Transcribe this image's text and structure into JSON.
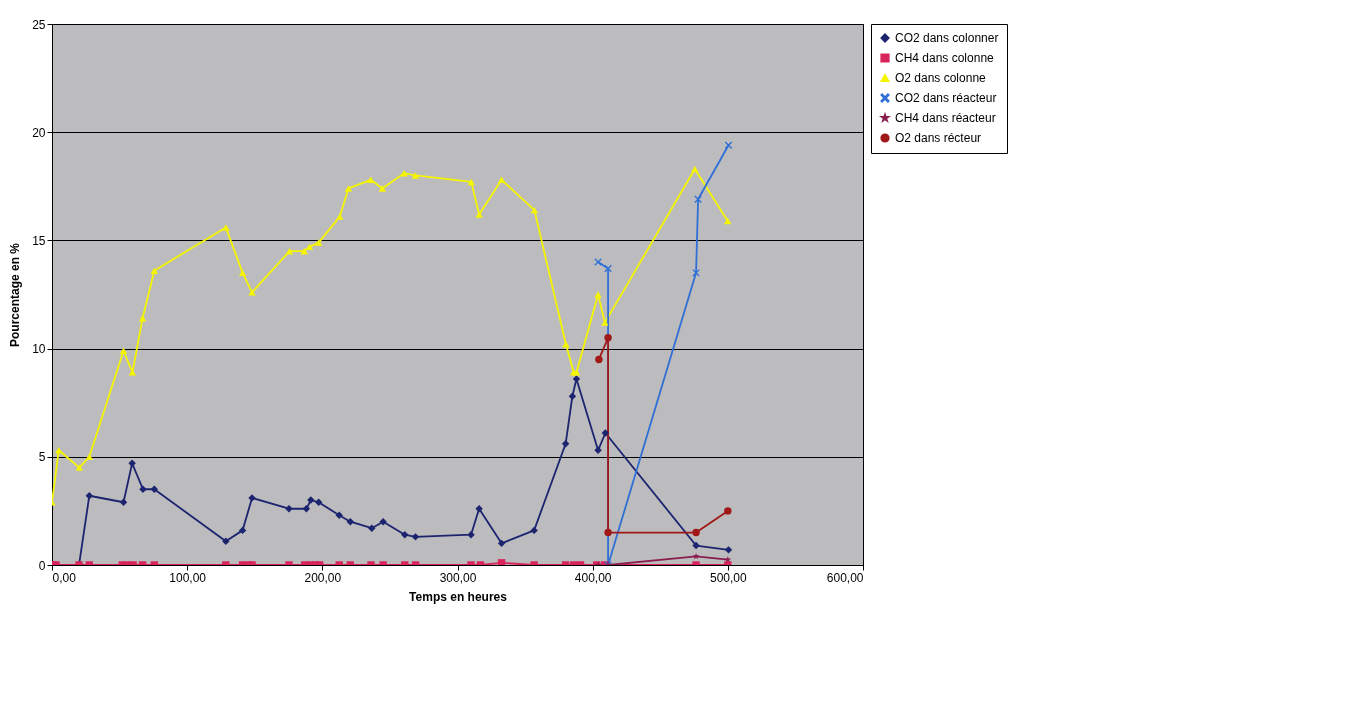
{
  "chart_data": {
    "type": "line",
    "xlabel": "Temps en heures",
    "ylabel": "Pourcentage en  %",
    "xlim": [
      0,
      600
    ],
    "ylim": [
      0,
      25
    ],
    "xticks": [
      {
        "value": 0,
        "label": "0,00"
      },
      {
        "value": 100,
        "label": "100,00"
      },
      {
        "value": 200,
        "label": "200,00"
      },
      {
        "value": 300,
        "label": "300,00"
      },
      {
        "value": 400,
        "label": "400,00"
      },
      {
        "value": 500,
        "label": "500,00"
      },
      {
        "value": 600,
        "label": "600,00"
      }
    ],
    "yticks": [
      0,
      5,
      10,
      15,
      20,
      25
    ],
    "grid": "y",
    "legend": "right",
    "series": [
      {
        "name": "CO2 dans colonner",
        "color": "#1c2470",
        "marker": "diamond",
        "x": [
          0,
          3,
          20,
          27.6,
          52.9,
          59.3,
          67.3,
          75.7,
          128.6,
          141,
          148,
          175.3,
          188.2,
          191.5,
          197.3,
          212.5,
          220.7,
          236.6,
          245,
          261,
          268.9,
          310,
          316,
          332.6,
          356.7,
          380,
          385,
          388,
          404,
          409.4,
          476.5,
          500.5
        ],
        "values": [
          0,
          0,
          0,
          3.2,
          2.9,
          4.7,
          3.5,
          3.5,
          1.1,
          1.6,
          3.1,
          2.6,
          2.6,
          3.0,
          2.9,
          2.3,
          2.0,
          1.7,
          2.0,
          1.4,
          1.3,
          1.4,
          2.6,
          1.0,
          1.6,
          5.6,
          7.8,
          8.6,
          5.3,
          6.1,
          0.9,
          0.7
        ]
      },
      {
        "name": "CH4 dans colonne",
        "color": "#d8245a",
        "marker": "square",
        "x": [
          0,
          3,
          20,
          27.6,
          52,
          56,
          60,
          67,
          75.7,
          128.6,
          141,
          145,
          148,
          175.3,
          187,
          191,
          195,
          198,
          212.5,
          220.7,
          236,
          245,
          261,
          269,
          310,
          317,
          332.6,
          356.7,
          380,
          386,
          391,
          403,
          409,
          476.5,
          500
        ],
        "values": [
          0,
          0,
          0,
          0,
          0,
          0,
          0,
          0,
          0,
          0,
          0,
          0,
          0,
          0,
          0,
          0,
          0,
          0,
          0,
          0,
          0,
          0,
          0,
          0,
          0,
          0,
          0.1,
          0,
          0,
          0,
          0,
          0,
          0,
          0,
          0
        ]
      },
      {
        "name": "O2 dans colonne",
        "color": "#f5f500",
        "marker": "triangle",
        "x": [
          0,
          5,
          20.2,
          27.6,
          52.9,
          59.5,
          67,
          75.7,
          128.6,
          141,
          148,
          175.7,
          186.6,
          190.5,
          197.3,
          212.9,
          219.3,
          235.8,
          244.4,
          260.5,
          268.9,
          310.2,
          316,
          332.6,
          356.9,
          380.2,
          386,
          388,
          404,
          409,
          475.6,
          499.9
        ],
        "values": [
          2.9,
          5.3,
          4.5,
          5.0,
          9.9,
          8.9,
          11.4,
          13.6,
          15.6,
          13.5,
          12.6,
          14.5,
          14.5,
          14.7,
          14.9,
          16.1,
          17.4,
          17.8,
          17.4,
          18.1,
          18.0,
          17.7,
          16.2,
          17.8,
          16.4,
          10.2,
          8.9,
          8.9,
          12.5,
          11.2,
          18.3,
          15.9
        ]
      },
      {
        "name": "CO2 dans réacteur",
        "color": "#2f6fd6",
        "marker": "cross",
        "x": [
          404,
          411.4,
          411.4,
          476.5,
          478,
          500.5
        ],
        "values": [
          14.0,
          13.7,
          0,
          13.5,
          16.9,
          19.4
        ]
      },
      {
        "name": "CH4 dans réacteur",
        "color": "#8a1f4e",
        "marker": "star",
        "x": [
          404,
          411.4,
          476.5,
          500
        ],
        "values": [
          0,
          0,
          0.4,
          0.25
        ]
      },
      {
        "name": "O2 dans récteur",
        "color": "#a01818",
        "marker": "circle",
        "x": [
          404.6,
          411.4,
          411.4,
          476.5,
          500
        ],
        "values": [
          9.5,
          10.5,
          1.5,
          1.5,
          2.5
        ]
      }
    ]
  }
}
